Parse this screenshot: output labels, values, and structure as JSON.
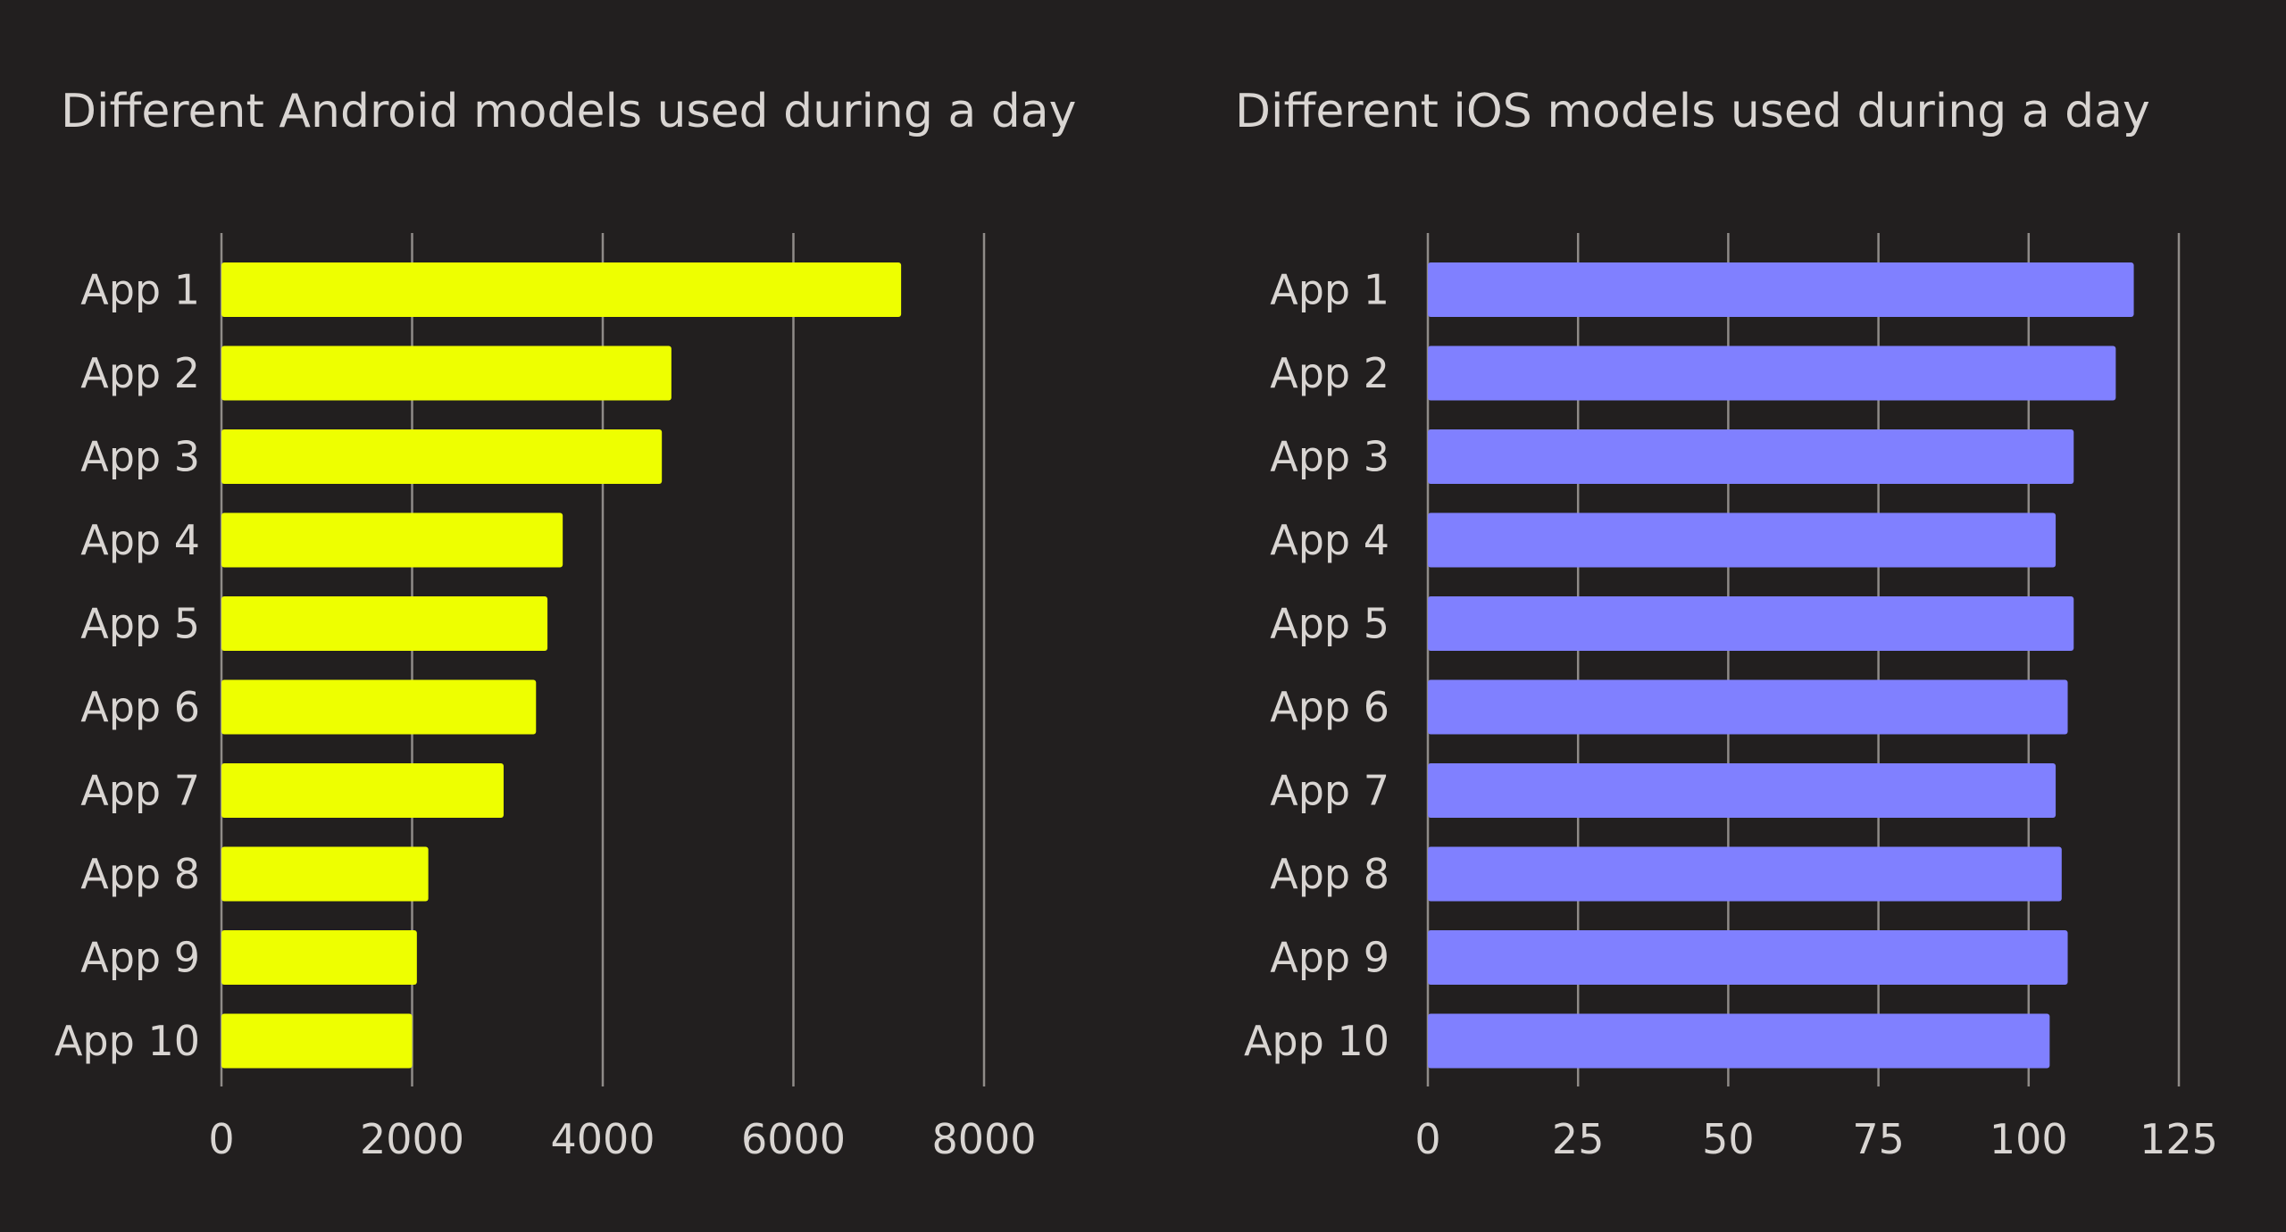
{
  "chart_data": [
    {
      "type": "bar",
      "orientation": "horizontal",
      "title": "Different Android models used during a day",
      "categories": [
        "App 1",
        "App 2",
        "App 3",
        "App 4",
        "App 5",
        "App 6",
        "App 7",
        "App 8",
        "App 9",
        "App 10"
      ],
      "values": [
        7130,
        4720,
        4620,
        3580,
        3420,
        3300,
        2960,
        2170,
        2050,
        2000
      ],
      "xlim": [
        0,
        8000
      ],
      "xticks": [
        0,
        2000,
        4000,
        6000,
        8000
      ],
      "xlabel": "",
      "ylabel": "",
      "grid": "vertical",
      "color": "#eeff00"
    },
    {
      "type": "bar",
      "orientation": "horizontal",
      "title": "Different iOS models used during a day",
      "categories": [
        "App 1",
        "App 2",
        "App 3",
        "App 4",
        "App 5",
        "App 6",
        "App 7",
        "App 8",
        "App 9",
        "App 10"
      ],
      "values": [
        117.5,
        114.5,
        107.5,
        104.5,
        107.5,
        106.5,
        104.5,
        105.5,
        106.5,
        103.5
      ],
      "xlim": [
        0,
        125
      ],
      "xticks": [
        0,
        25,
        50,
        75,
        100,
        125
      ],
      "xlabel": "",
      "ylabel": "",
      "grid": "vertical",
      "color": "#8080ff"
    }
  ]
}
